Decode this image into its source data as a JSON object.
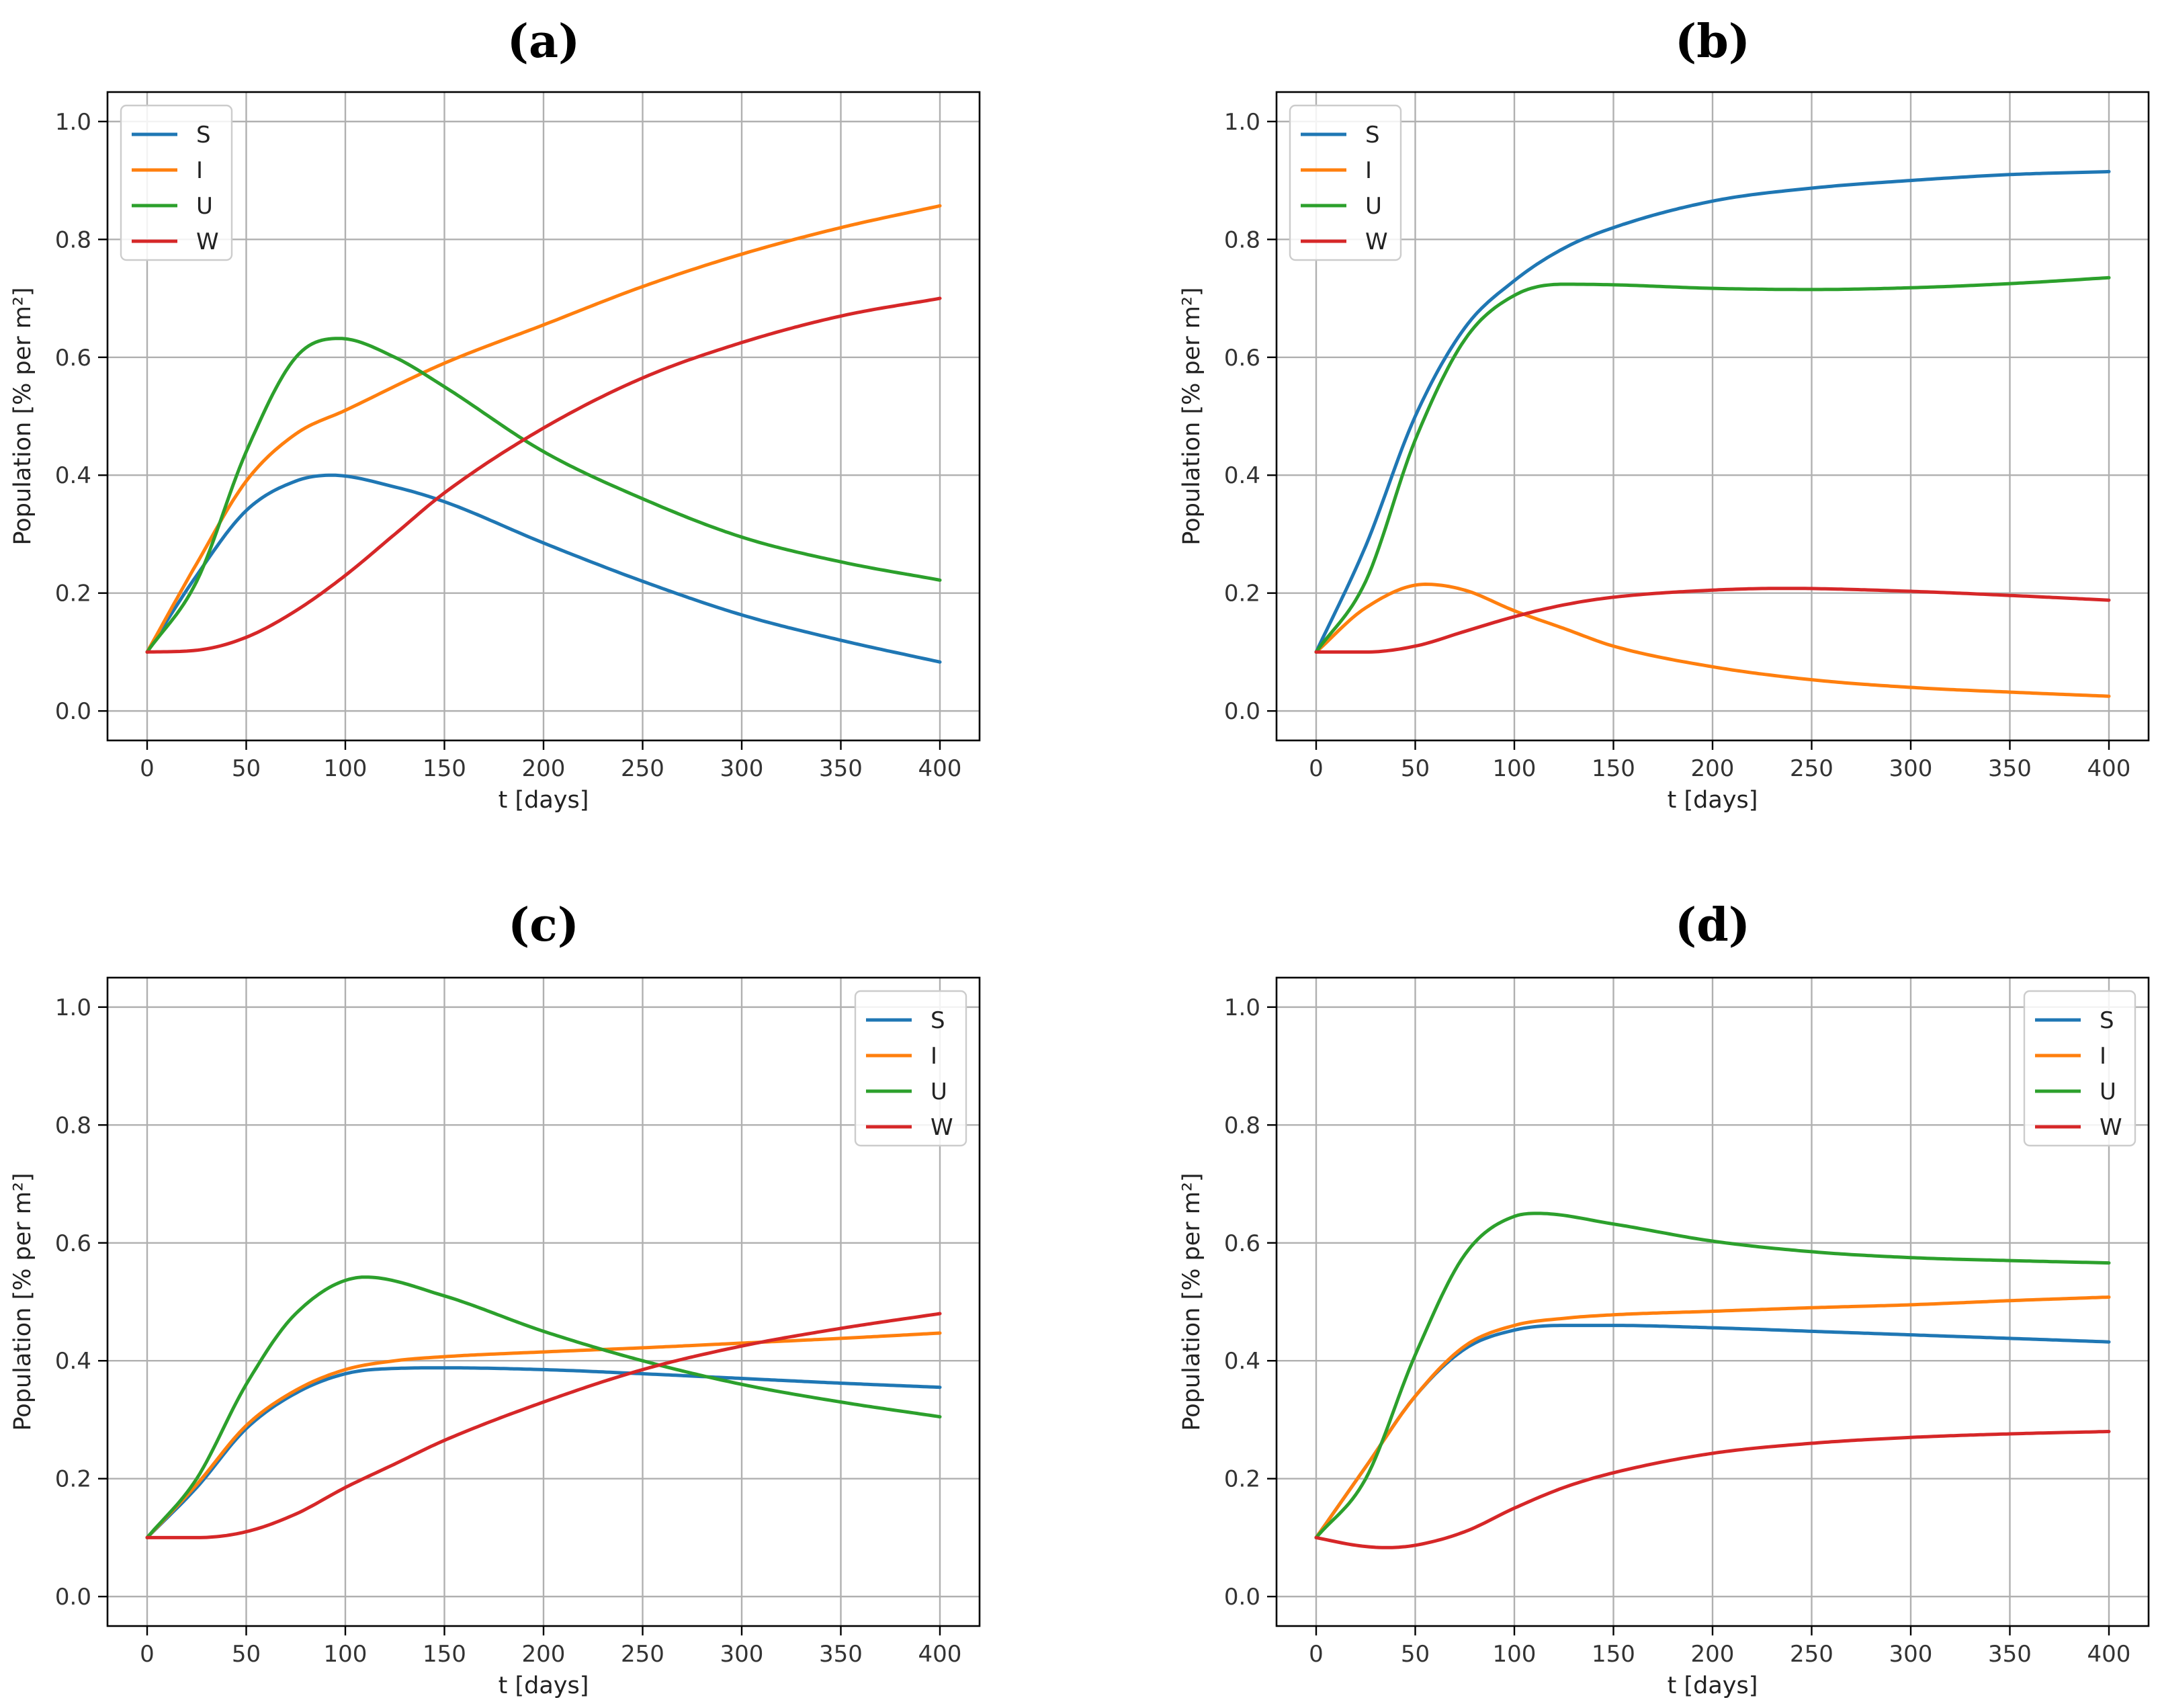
{
  "chart_data": [
    {
      "type": "line",
      "title": "(a)",
      "xlabel": "t [days]",
      "ylabel": "Population [% per m²]",
      "xlim": [
        -20,
        420
      ],
      "ylim": [
        -0.05,
        1.05
      ],
      "xticks": [
        0,
        50,
        100,
        150,
        200,
        250,
        300,
        350,
        400
      ],
      "yticks": [
        0.0,
        0.2,
        0.4,
        0.6,
        0.8,
        1.0
      ],
      "xtick_labels": [
        "0",
        "50",
        "100",
        "150",
        "200",
        "250",
        "300",
        "350",
        "400"
      ],
      "ytick_labels": [
        "0.0",
        "0.2",
        "0.4",
        "0.6",
        "0.8",
        "1.0"
      ],
      "grid": true,
      "legend_position": "top-left",
      "series": [
        {
          "name": "S",
          "color": "#1f77b4",
          "x": [
            0,
            25,
            50,
            75,
            93,
            125,
            150,
            200,
            250,
            300,
            350,
            400
          ],
          "values": [
            0.1,
            0.23,
            0.34,
            0.39,
            0.4,
            0.38,
            0.355,
            0.285,
            0.22,
            0.163,
            0.12,
            0.083
          ]
        },
        {
          "name": "I",
          "color": "#ff7f0e",
          "x": [
            0,
            25,
            50,
            75,
            100,
            150,
            200,
            250,
            300,
            350,
            400
          ],
          "values": [
            0.1,
            0.25,
            0.39,
            0.47,
            0.51,
            0.59,
            0.655,
            0.72,
            0.775,
            0.82,
            0.857
          ]
        },
        {
          "name": "U",
          "color": "#2ca02c",
          "x": [
            0,
            25,
            50,
            75,
            97,
            125,
            150,
            200,
            250,
            300,
            350,
            400
          ],
          "values": [
            0.1,
            0.22,
            0.44,
            0.6,
            0.632,
            0.6,
            0.55,
            0.44,
            0.36,
            0.295,
            0.253,
            0.222
          ]
        },
        {
          "name": "W",
          "color": "#d62728",
          "x": [
            0,
            25,
            50,
            75,
            100,
            125,
            150,
            200,
            250,
            300,
            350,
            400
          ],
          "values": [
            0.1,
            0.103,
            0.125,
            0.17,
            0.23,
            0.3,
            0.37,
            0.48,
            0.565,
            0.625,
            0.67,
            0.7
          ]
        }
      ]
    },
    {
      "type": "line",
      "title": "(b)",
      "xlabel": "t [days]",
      "ylabel": "Population [% per m²]",
      "xlim": [
        -20,
        420
      ],
      "ylim": [
        -0.05,
        1.05
      ],
      "xticks": [
        0,
        50,
        100,
        150,
        200,
        250,
        300,
        350,
        400
      ],
      "yticks": [
        0.0,
        0.2,
        0.4,
        0.6,
        0.8,
        1.0
      ],
      "xtick_labels": [
        "0",
        "50",
        "100",
        "150",
        "200",
        "250",
        "300",
        "350",
        "400"
      ],
      "ytick_labels": [
        "0.0",
        "0.2",
        "0.4",
        "0.6",
        "0.8",
        "1.0"
      ],
      "grid": true,
      "legend_position": "top-left",
      "series": [
        {
          "name": "S",
          "color": "#1f77b4",
          "x": [
            0,
            25,
            50,
            75,
            100,
            125,
            150,
            200,
            250,
            300,
            350,
            400
          ],
          "values": [
            0.1,
            0.28,
            0.5,
            0.65,
            0.73,
            0.785,
            0.82,
            0.865,
            0.887,
            0.9,
            0.91,
            0.915
          ]
        },
        {
          "name": "I",
          "color": "#ff7f0e",
          "x": [
            0,
            25,
            55,
            75,
            100,
            125,
            150,
            200,
            250,
            300,
            350,
            400
          ],
          "values": [
            0.1,
            0.175,
            0.215,
            0.205,
            0.17,
            0.14,
            0.11,
            0.075,
            0.053,
            0.04,
            0.032,
            0.025
          ]
        },
        {
          "name": "U",
          "color": "#2ca02c",
          "x": [
            0,
            25,
            50,
            75,
            100,
            125,
            150,
            200,
            250,
            300,
            350,
            400
          ],
          "values": [
            0.1,
            0.22,
            0.46,
            0.63,
            0.705,
            0.724,
            0.723,
            0.717,
            0.715,
            0.718,
            0.725,
            0.735
          ]
        },
        {
          "name": "W",
          "color": "#d62728",
          "x": [
            0,
            25,
            50,
            75,
            100,
            125,
            150,
            200,
            237,
            300,
            350,
            400
          ],
          "values": [
            0.1,
            0.1,
            0.11,
            0.135,
            0.16,
            0.18,
            0.193,
            0.205,
            0.208,
            0.203,
            0.196,
            0.188
          ]
        }
      ]
    },
    {
      "type": "line",
      "title": "(c)",
      "xlabel": "t [days]",
      "ylabel": "Population [% per m²]",
      "xlim": [
        -20,
        420
      ],
      "ylim": [
        -0.05,
        1.05
      ],
      "xticks": [
        0,
        50,
        100,
        150,
        200,
        250,
        300,
        350,
        400
      ],
      "yticks": [
        0.0,
        0.2,
        0.4,
        0.6,
        0.8,
        1.0
      ],
      "xtick_labels": [
        "0",
        "50",
        "100",
        "150",
        "200",
        "250",
        "300",
        "350",
        "400"
      ],
      "ytick_labels": [
        "0.0",
        "0.2",
        "0.4",
        "0.6",
        "0.8",
        "1.0"
      ],
      "grid": true,
      "legend_position": "top-right",
      "series": [
        {
          "name": "S",
          "color": "#1f77b4",
          "x": [
            0,
            25,
            50,
            75,
            100,
            125,
            150,
            200,
            250,
            300,
            350,
            400
          ],
          "values": [
            0.1,
            0.185,
            0.285,
            0.345,
            0.378,
            0.387,
            0.388,
            0.385,
            0.378,
            0.37,
            0.362,
            0.355
          ]
        },
        {
          "name": "I",
          "color": "#ff7f0e",
          "x": [
            0,
            25,
            50,
            75,
            100,
            125,
            150,
            200,
            250,
            300,
            350,
            400
          ],
          "values": [
            0.1,
            0.19,
            0.29,
            0.35,
            0.385,
            0.4,
            0.407,
            0.415,
            0.422,
            0.43,
            0.438,
            0.447
          ]
        },
        {
          "name": "U",
          "color": "#2ca02c",
          "x": [
            0,
            25,
            50,
            75,
            110,
            150,
            200,
            250,
            300,
            350,
            400
          ],
          "values": [
            0.1,
            0.2,
            0.36,
            0.48,
            0.542,
            0.51,
            0.45,
            0.4,
            0.36,
            0.33,
            0.305
          ]
        },
        {
          "name": "W",
          "color": "#d62728",
          "x": [
            0,
            25,
            50,
            75,
            100,
            125,
            150,
            200,
            250,
            300,
            350,
            400
          ],
          "values": [
            0.1,
            0.1,
            0.11,
            0.14,
            0.185,
            0.225,
            0.265,
            0.33,
            0.385,
            0.425,
            0.455,
            0.48
          ]
        }
      ]
    },
    {
      "type": "line",
      "title": "(d)",
      "xlabel": "t [days]",
      "ylabel": "Population [% per m²]",
      "xlim": [
        -20,
        420
      ],
      "ylim": [
        -0.05,
        1.05
      ],
      "xticks": [
        0,
        50,
        100,
        150,
        200,
        250,
        300,
        350,
        400
      ],
      "yticks": [
        0.0,
        0.2,
        0.4,
        0.6,
        0.8,
        1.0
      ],
      "xtick_labels": [
        "0",
        "50",
        "100",
        "150",
        "200",
        "250",
        "300",
        "350",
        "400"
      ],
      "ytick_labels": [
        "0.0",
        "0.2",
        "0.4",
        "0.6",
        "0.8",
        "1.0"
      ],
      "grid": true,
      "legend_position": "top-right",
      "series": [
        {
          "name": "S",
          "color": "#1f77b4",
          "x": [
            0,
            25,
            50,
            75,
            100,
            125,
            150,
            200,
            250,
            300,
            350,
            400
          ],
          "values": [
            0.1,
            0.22,
            0.34,
            0.42,
            0.452,
            0.46,
            0.46,
            0.456,
            0.45,
            0.444,
            0.438,
            0.432
          ]
        },
        {
          "name": "I",
          "color": "#ff7f0e",
          "x": [
            0,
            25,
            50,
            75,
            100,
            125,
            150,
            200,
            250,
            300,
            350,
            400
          ],
          "values": [
            0.1,
            0.22,
            0.34,
            0.425,
            0.46,
            0.472,
            0.478,
            0.484,
            0.49,
            0.495,
            0.502,
            0.508
          ]
        },
        {
          "name": "U",
          "color": "#2ca02c",
          "x": [
            0,
            25,
            50,
            75,
            100,
            112,
            150,
            200,
            250,
            300,
            350,
            400
          ],
          "values": [
            0.1,
            0.2,
            0.41,
            0.58,
            0.645,
            0.65,
            0.632,
            0.603,
            0.585,
            0.575,
            0.57,
            0.566
          ]
        },
        {
          "name": "W",
          "color": "#d62728",
          "x": [
            0,
            20,
            35,
            50,
            75,
            100,
            125,
            150,
            200,
            250,
            300,
            350,
            400
          ],
          "values": [
            0.1,
            0.087,
            0.083,
            0.087,
            0.11,
            0.15,
            0.185,
            0.21,
            0.243,
            0.26,
            0.27,
            0.276,
            0.28
          ]
        }
      ]
    }
  ]
}
